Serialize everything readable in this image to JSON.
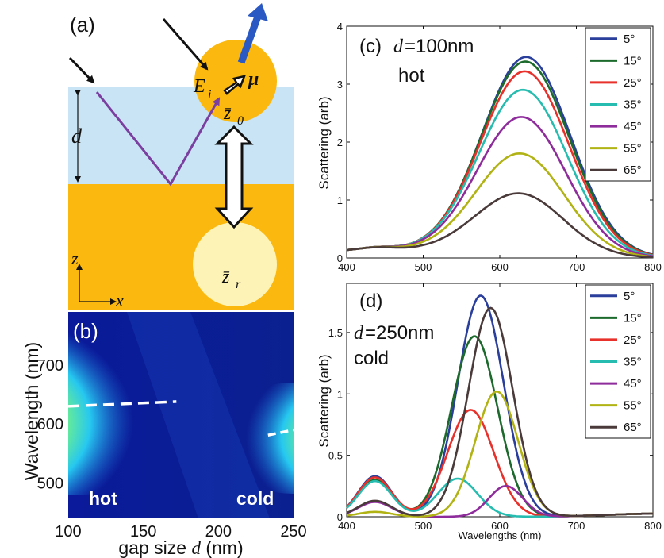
{
  "panel_a": {
    "label": "(a)",
    "d_label": "d",
    "Ei_label": "E",
    "Ei_sub": "i",
    "mu_label": "μ",
    "z0_label": "z̄",
    "z0_sub": "0",
    "zr_label": "z̄",
    "zr_sub": "r",
    "z_axis": "z",
    "x_axis": "x",
    "colors": {
      "metal": "#fbb80f",
      "spacer": "#c9e4f4",
      "image_dipole": "#fdf3b6",
      "ray": "#7b3fa0",
      "scatter_arrow": "#2b59c3"
    }
  },
  "chart_data": [
    {
      "id": "b",
      "type": "heatmap",
      "panel_label": "(b)",
      "xlabel": "gap size d (nm)",
      "xlabel_text": "gap size ",
      "xlabel_var": "d",
      "xlabel_unit": " (nm)",
      "ylabel": "Wavelength (nm)",
      "xlim": [
        100,
        250
      ],
      "ylim": [
        440,
        790
      ],
      "xticks": [
        100,
        150,
        200,
        250
      ],
      "yticks": [
        500,
        600,
        700
      ],
      "annotations": [
        "hot",
        "cold"
      ],
      "hot_spot": {
        "x": 100,
        "y": 630,
        "color": "#e01010"
      },
      "cold_spot": {
        "x": 250,
        "y": 590,
        "color": "#e01010"
      },
      "dashed_line_hot": [
        [
          100,
          630
        ],
        [
          172,
          638
        ]
      ],
      "dashed_line_cold": [
        [
          233,
          581
        ],
        [
          250,
          590
        ]
      ]
    },
    {
      "id": "c",
      "type": "line",
      "panel_label": "(c)",
      "title_var": "d",
      "title_value": "=100nm",
      "title_line2": "hot",
      "xlabel": "",
      "ylabel": "Scattering (arb)",
      "xlim": [
        400,
        800
      ],
      "ylim": [
        0,
        4
      ],
      "xticks": [
        400,
        500,
        600,
        700,
        800
      ],
      "yticks": [
        0,
        1,
        2,
        3,
        4
      ],
      "legend_position": "top-right",
      "series": [
        {
          "name": "5°",
          "color": "#2a3f9c",
          "peak": 3.43,
          "center": 635,
          "width": 58
        },
        {
          "name": "15°",
          "color": "#1d6b2c",
          "peak": 3.35,
          "center": 634,
          "width": 58
        },
        {
          "name": "25°",
          "color": "#e8312b",
          "peak": 3.18,
          "center": 633,
          "width": 58
        },
        {
          "name": "35°",
          "color": "#26bcb0",
          "peak": 2.86,
          "center": 631,
          "width": 58
        },
        {
          "name": "45°",
          "color": "#8e2c9c",
          "peak": 2.39,
          "center": 629,
          "width": 58
        },
        {
          "name": "55°",
          "color": "#b1b314",
          "peak": 1.76,
          "center": 627,
          "width": 58
        },
        {
          "name": "65°",
          "color": "#4a3a3a",
          "peak": 1.07,
          "center": 626,
          "width": 58
        }
      ]
    },
    {
      "id": "d",
      "type": "line",
      "panel_label": "(d)",
      "title_var": "d",
      "title_value": "=250nm",
      "title_line2": "cold",
      "xlabel": "Wavelengths (nm)",
      "ylabel": "Scattering (arb)",
      "xlim": [
        400,
        800
      ],
      "ylim": [
        0,
        1.9
      ],
      "xticks": [
        400,
        500,
        600,
        700,
        800
      ],
      "yticks": [
        0,
        0.5,
        1,
        1.5
      ],
      "ytick_labels": [
        "0",
        "0.5",
        "1",
        "1.5"
      ],
      "legend_position": "top-right",
      "series": [
        {
          "name": "5°",
          "color": "#2a3f9c",
          "peak": 1.8,
          "center": 575,
          "width": 30,
          "bump": 0.33
        },
        {
          "name": "15°",
          "color": "#1d6b2c",
          "peak": 1.47,
          "center": 567,
          "width": 30,
          "bump": 0.3
        },
        {
          "name": "25°",
          "color": "#e8312b",
          "peak": 0.87,
          "center": 562,
          "width": 30,
          "bump": 0.32
        },
        {
          "name": "35°",
          "color": "#26bcb0",
          "peak": 0.31,
          "center": 545,
          "width": 26,
          "bump": 0.29
        },
        {
          "name": "45°",
          "color": "#8e2c9c",
          "peak": 0.25,
          "center": 608,
          "width": 22,
          "bump": 0.12
        },
        {
          "name": "55°",
          "color": "#b1b314",
          "peak": 1.02,
          "center": 596,
          "width": 28,
          "bump": 0.04
        },
        {
          "name": "65°",
          "color": "#4a3a3a",
          "peak": 1.7,
          "center": 588,
          "width": 29,
          "bump": 0.13
        }
      ]
    }
  ]
}
